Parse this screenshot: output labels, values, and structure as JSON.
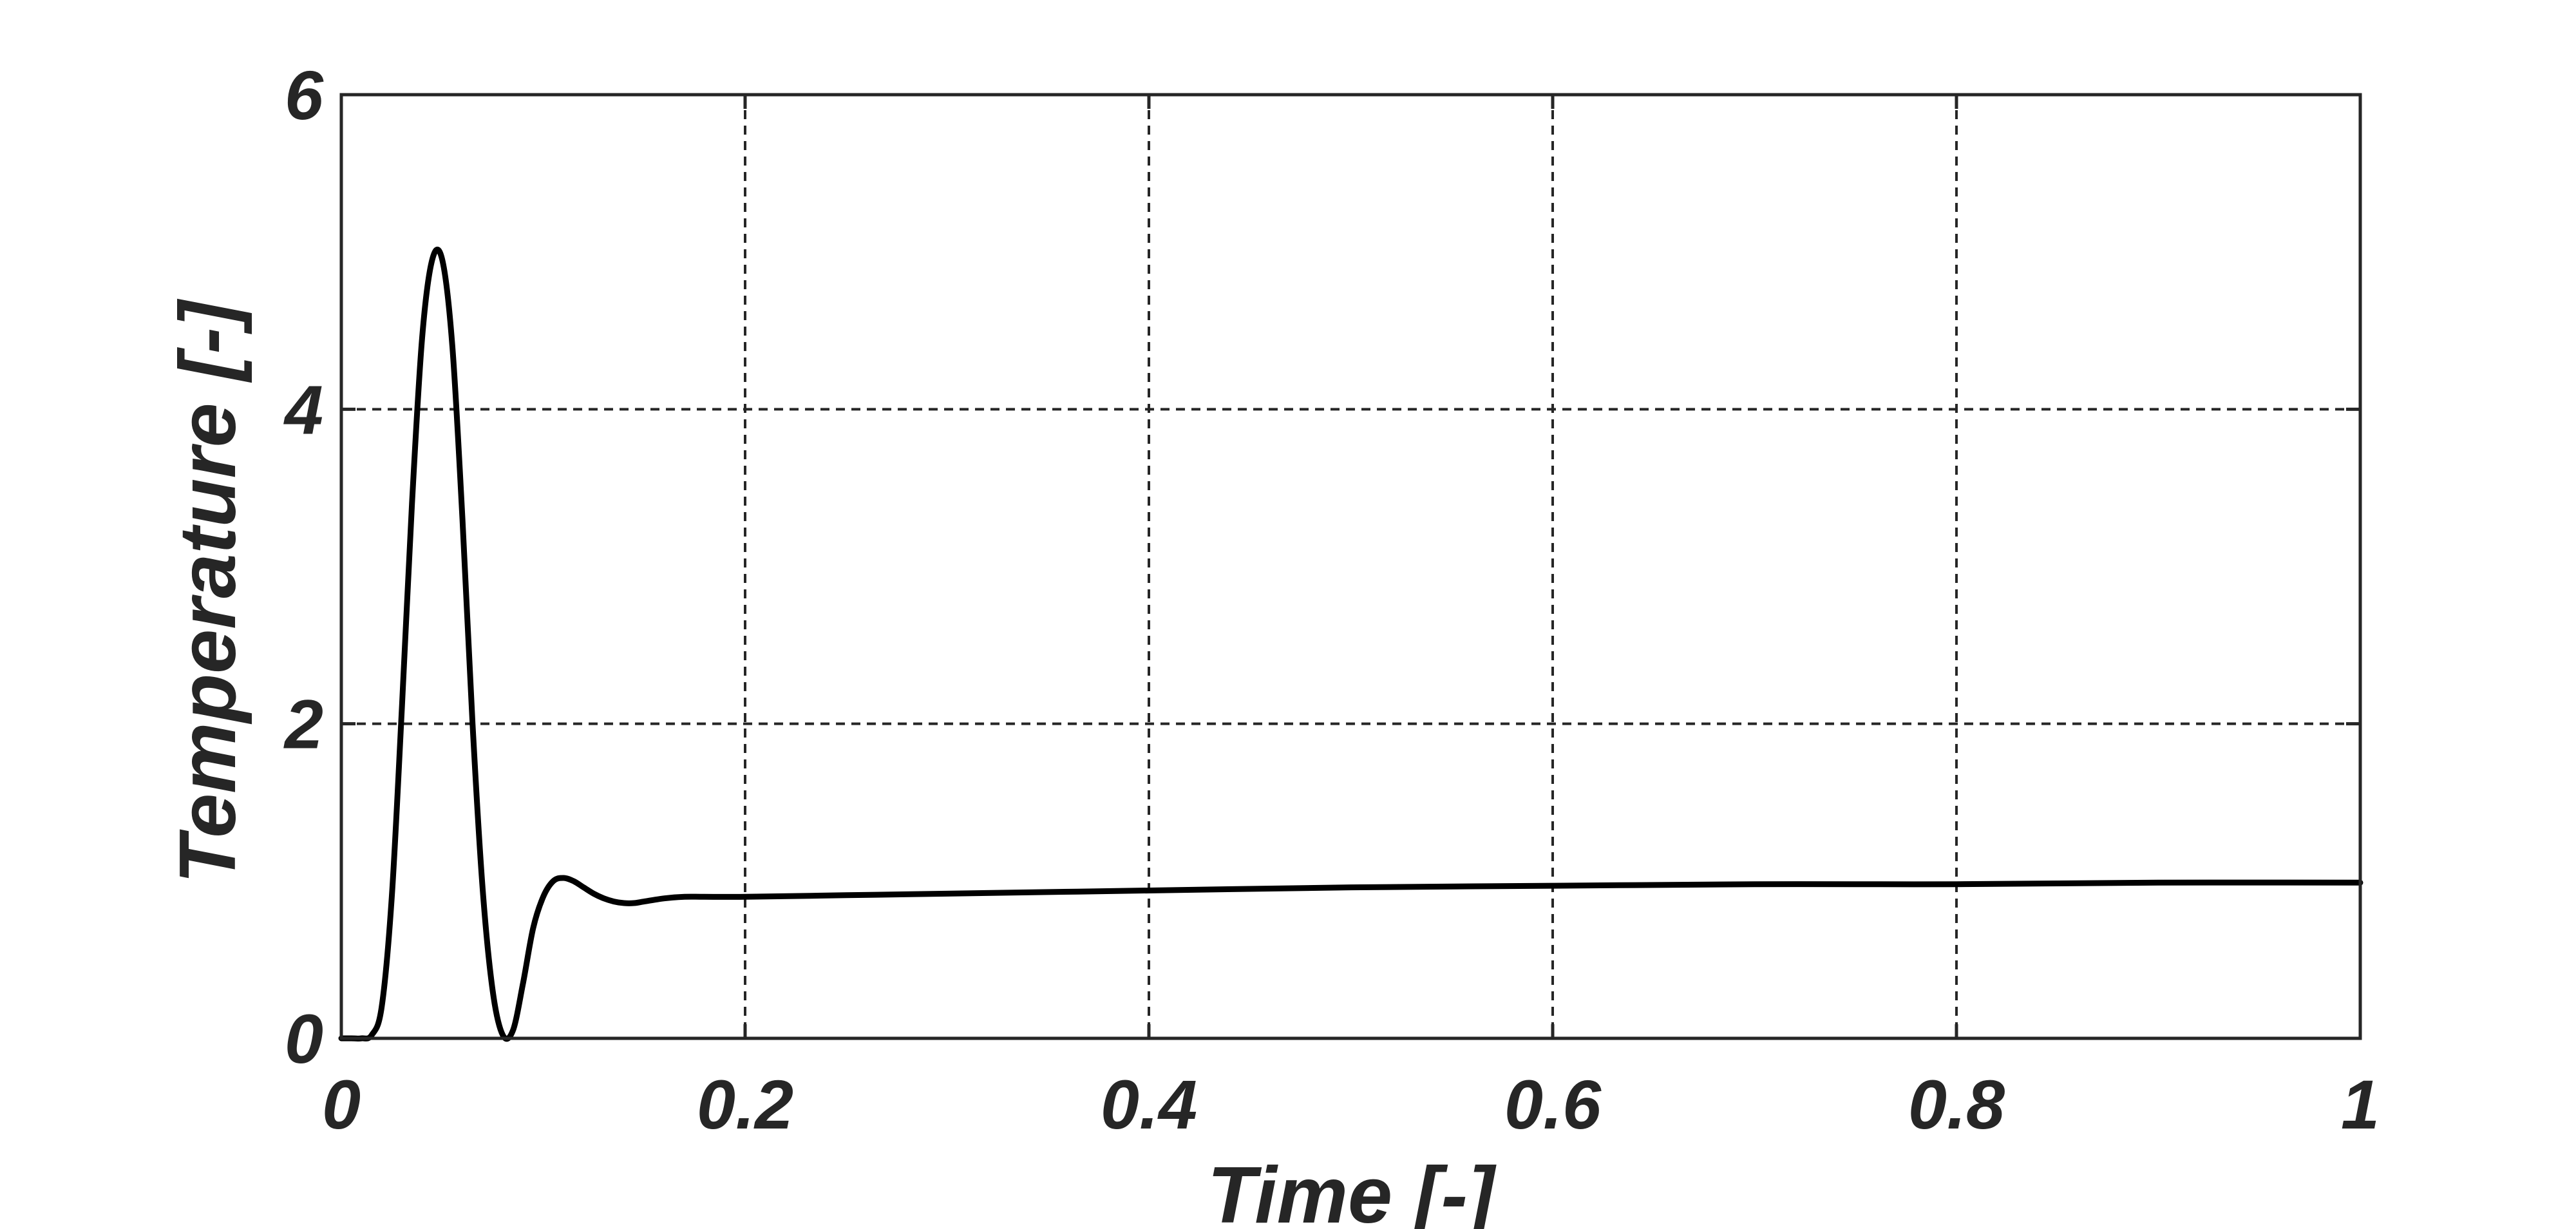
{
  "chart_data": {
    "type": "line",
    "title": "",
    "xlabel": "Time [-]",
    "ylabel": "Temperature [-]",
    "xlim": [
      0,
      1
    ],
    "ylim": [
      0,
      6
    ],
    "xticks": [
      0,
      0.2,
      0.4,
      0.6,
      0.8,
      1
    ],
    "xtick_labels": [
      "0",
      "0.2",
      "0.4",
      "0.6",
      "0.8",
      "1"
    ],
    "yticks": [
      0,
      2,
      4,
      6
    ],
    "ytick_labels": [
      "0",
      "2",
      "4",
      "6"
    ],
    "grid": true,
    "legend": false,
    "colors": {
      "line": "#000000",
      "axis": "#262626",
      "background": "#ffffff"
    },
    "series": [
      {
        "x": [
          0,
          0.005,
          0.01,
          0.015,
          0.02,
          0.025,
          0.03,
          0.035,
          0.04,
          0.045,
          0.05,
          0.055,
          0.06,
          0.065,
          0.07,
          0.075,
          0.08,
          0.085,
          0.09,
          0.095,
          0.1,
          0.105,
          0.11,
          0.115,
          0.12,
          0.125,
          0.13,
          0.135,
          0.14,
          0.145,
          0.15,
          0.16,
          0.17,
          0.18,
          0.2,
          0.25,
          0.3,
          0.4,
          0.5,
          0.6,
          0.7,
          0.8,
          0.9,
          1.0
        ],
        "y": [
          0,
          0,
          0,
          0.02,
          0.2,
          0.9,
          2.1,
          3.4,
          4.45,
          4.95,
          4.95,
          4.4,
          3.3,
          2.0,
          0.95,
          0.3,
          0.02,
          0.05,
          0.35,
          0.7,
          0.9,
          1.0,
          1.02,
          1.0,
          0.96,
          0.92,
          0.89,
          0.87,
          0.86,
          0.86,
          0.87,
          0.89,
          0.9,
          0.9,
          0.9,
          0.91,
          0.92,
          0.94,
          0.96,
          0.97,
          0.98,
          0.98,
          0.99,
          0.99
        ]
      }
    ]
  }
}
